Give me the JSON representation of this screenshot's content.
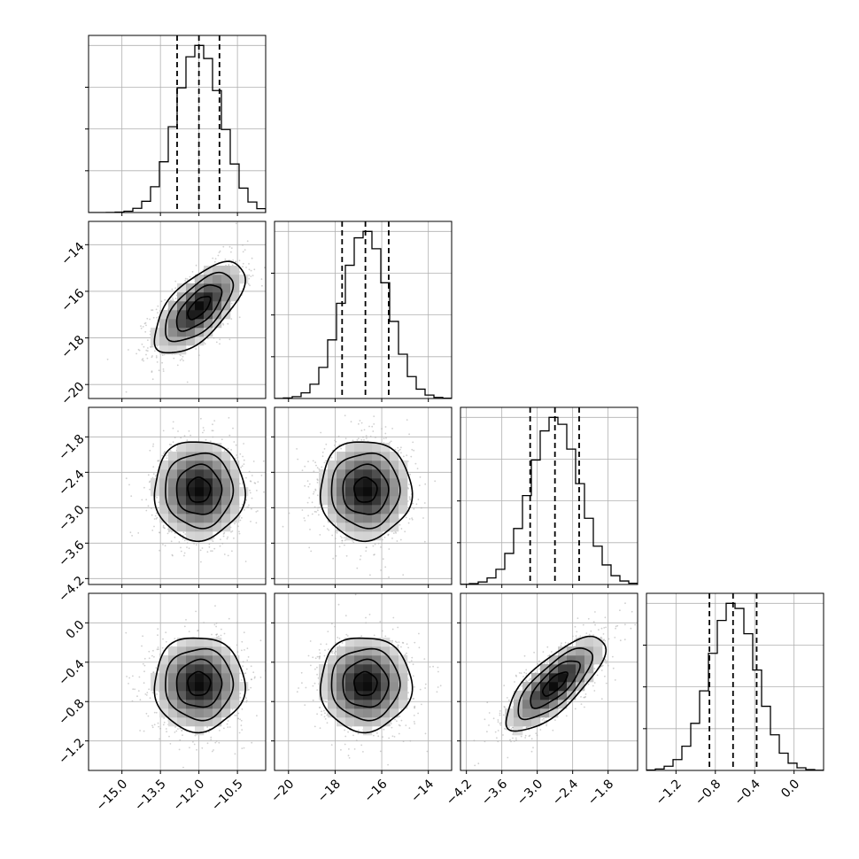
{
  "chart_data": {
    "type": "corner",
    "grid": true,
    "parameters": [
      {
        "range": [
          -16.3,
          -9.4
        ],
        "mean": -12.0,
        "sd": 0.88,
        "quantiles": [
          -12.85,
          -12.0,
          -11.2
        ],
        "ticks": [
          -15.0,
          -13.5,
          -12.0,
          -10.5
        ],
        "tick_labels": [
          "−15.0",
          "−13.5",
          "−12.0",
          "−10.5"
        ]
      },
      {
        "range": [
          -20.6,
          -13.0
        ],
        "mean": -16.7,
        "sd": 0.98,
        "quantiles": [
          -17.7,
          -16.7,
          -15.7
        ],
        "ticks": [
          -20,
          -18,
          -16,
          -14
        ],
        "tick_labels": [
          "−20",
          "−18",
          "−16",
          "−14"
        ]
      },
      {
        "range": [
          -4.3,
          -1.3
        ],
        "mean": -2.7,
        "sd": 0.42,
        "quantiles": [
          -3.12,
          -2.7,
          -2.29
        ],
        "ticks": [
          -4.2,
          -3.6,
          -3.0,
          -2.4,
          -1.8
        ],
        "tick_labels": [
          "−4.2",
          "−3.6",
          "−3.0",
          "−2.4",
          "−1.8"
        ]
      },
      {
        "range": [
          -1.5,
          0.3
        ],
        "mean": -0.62,
        "sd": 0.24,
        "quantiles": [
          -0.86,
          -0.62,
          -0.38
        ],
        "ticks": [
          -1.2,
          -0.8,
          -0.4,
          0.0
        ],
        "tick_labels": [
          "−1.2",
          "−0.8",
          "−0.4",
          "0.0"
        ]
      }
    ],
    "correlations": {
      "1,0": 0.65,
      "2,0": 0.0,
      "2,1": 0.0,
      "3,0": 0.0,
      "3,1": 0.0,
      "3,2": 0.75
    }
  }
}
